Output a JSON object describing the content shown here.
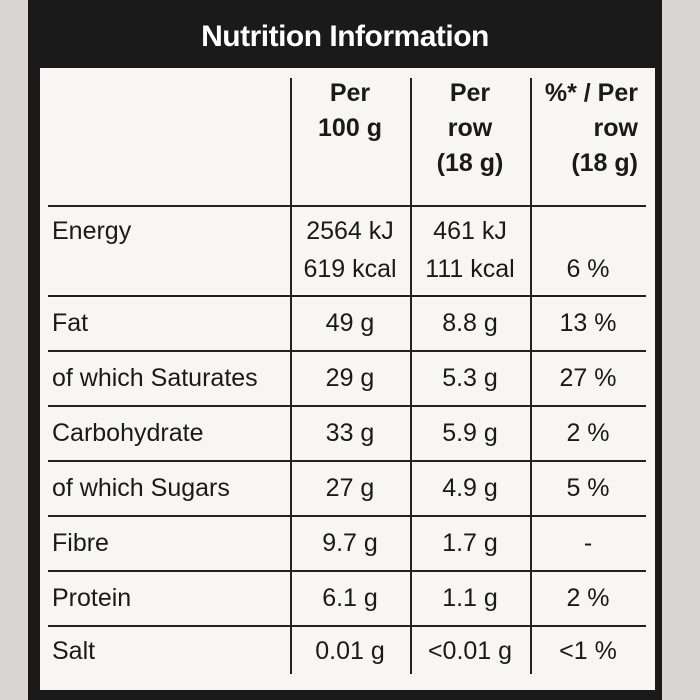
{
  "header": {
    "title": "Nutrition Information"
  },
  "table": {
    "columns": [
      [
        "Per",
        "100 g"
      ],
      [
        "Per",
        "row",
        "(18 g)"
      ],
      [
        "%* / Per",
        "row",
        "(18 g)"
      ]
    ],
    "rows": [
      [
        "Energy",
        [
          "2564 kJ",
          "619 kcal"
        ],
        [
          "461 kJ",
          "111 kcal"
        ],
        "6 %"
      ],
      [
        "Fat",
        "49 g",
        "8.8 g",
        "13 %"
      ],
      [
        "of which Saturates",
        "29 g",
        "5.3 g",
        "27 %"
      ],
      [
        "Carbohydrate",
        "33 g",
        "5.9 g",
        "2 %"
      ],
      [
        "of which Sugars",
        "27 g",
        "4.9 g",
        "5 %"
      ],
      [
        "Fibre",
        "9.7 g",
        "1.7 g",
        "-"
      ],
      [
        "Protein",
        "6.1 g",
        "1.1 g",
        "2 %"
      ],
      [
        "Salt",
        "0.01 g",
        "<0.01 g",
        "<1 %"
      ]
    ]
  }
}
